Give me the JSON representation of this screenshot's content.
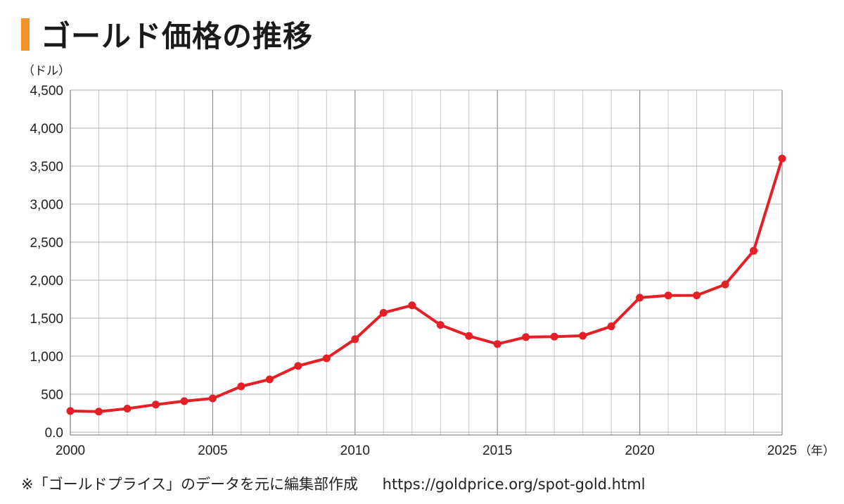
{
  "chart_data": {
    "type": "line",
    "title": "ゴールド価格の推移",
    "y_unit": "（ドル）",
    "x_unit": "（年）",
    "xlim": [
      2000,
      2025
    ],
    "ylim": [
      0,
      4500
    ],
    "x_ticks": [
      2000,
      2005,
      2010,
      2015,
      2020,
      2025
    ],
    "y_ticks": [
      {
        "value": 0,
        "label": "0.0"
      },
      {
        "value": 500,
        "label": "500"
      },
      {
        "value": 1000,
        "label": "1,000"
      },
      {
        "value": 1500,
        "label": "1,500"
      },
      {
        "value": 2000,
        "label": "2,000"
      },
      {
        "value": 2500,
        "label": "2,500"
      },
      {
        "value": 3000,
        "label": "3,000"
      },
      {
        "value": 3500,
        "label": "3,500"
      },
      {
        "value": 4000,
        "label": "4,000"
      },
      {
        "value": 4500,
        "label": "4,500"
      }
    ],
    "grid": true,
    "legend": "none",
    "series": [
      {
        "color": "#e41f26",
        "points": [
          {
            "x": 2000,
            "y": 279
          },
          {
            "x": 2001,
            "y": 271
          },
          {
            "x": 2002,
            "y": 310
          },
          {
            "x": 2003,
            "y": 363
          },
          {
            "x": 2004,
            "y": 409
          },
          {
            "x": 2005,
            "y": 444
          },
          {
            "x": 2006,
            "y": 603
          },
          {
            "x": 2007,
            "y": 695
          },
          {
            "x": 2008,
            "y": 872
          },
          {
            "x": 2009,
            "y": 972
          },
          {
            "x": 2010,
            "y": 1224
          },
          {
            "x": 2011,
            "y": 1571
          },
          {
            "x": 2012,
            "y": 1669
          },
          {
            "x": 2013,
            "y": 1411
          },
          {
            "x": 2014,
            "y": 1266
          },
          {
            "x": 2015,
            "y": 1160
          },
          {
            "x": 2016,
            "y": 1251
          },
          {
            "x": 2017,
            "y": 1257
          },
          {
            "x": 2018,
            "y": 1268
          },
          {
            "x": 2019,
            "y": 1393
          },
          {
            "x": 2020,
            "y": 1770
          },
          {
            "x": 2021,
            "y": 1799
          },
          {
            "x": 2022,
            "y": 1800
          },
          {
            "x": 2023,
            "y": 1943
          },
          {
            "x": 2024,
            "y": 2386
          },
          {
            "x": 2025,
            "y": 3600
          }
        ]
      }
    ]
  },
  "note": {
    "text": "※「ゴールドプライス」のデータを元に編集部作成",
    "url": "https://goldprice.org/spot-gold.html"
  },
  "colors": {
    "accent": "#f39325",
    "line": "#e41f26",
    "grid": "#b0b0b0"
  }
}
